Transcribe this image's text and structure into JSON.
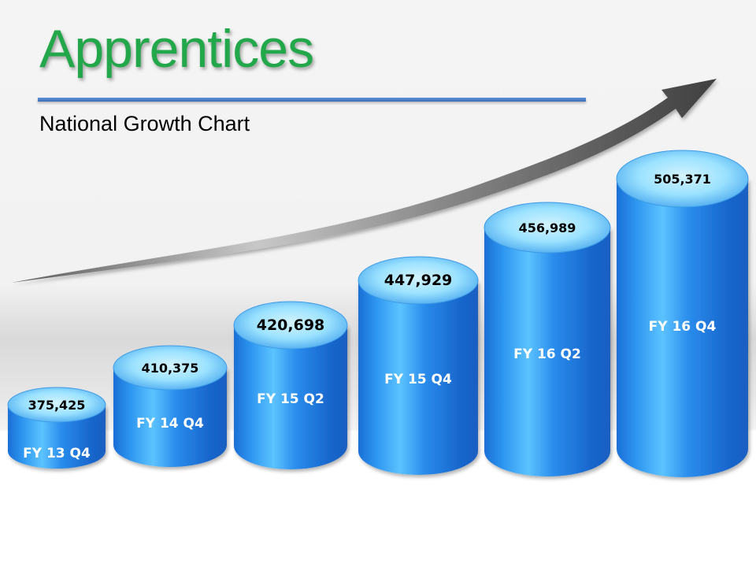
{
  "header": {
    "title": "Apprentices",
    "subtitle": "National Growth Chart"
  },
  "colors": {
    "title_green": "#22a84a",
    "rule_blue": "#4a7fc8",
    "cylinder_blue": "#1f7fe0",
    "cylinder_top": "#7fd4ff",
    "trend_arrow": "#555555"
  },
  "chart_data": {
    "type": "bar",
    "style": "3d-cylinder",
    "categories": [
      "FY 13 Q4",
      "FY 14 Q4",
      "FY 15 Q2",
      "FY 15 Q4",
      "FY 16 Q2",
      "FY 16 Q4"
    ],
    "value_labels": [
      "375,425",
      "410,375",
      "420,698",
      "447,929",
      "456,989",
      "505,371"
    ],
    "values": [
      375425,
      410375,
      420698,
      447929,
      456989,
      505371
    ],
    "trend_arrow": "upward",
    "grid": false,
    "legend": "none"
  }
}
